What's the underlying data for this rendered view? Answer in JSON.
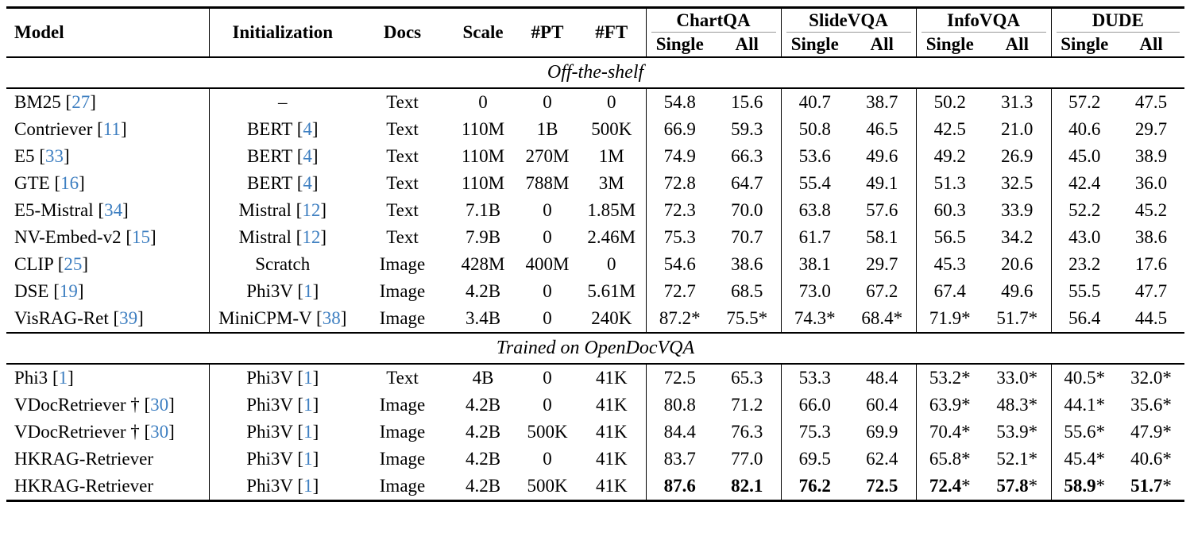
{
  "colors": {
    "citation_link": "#3e7fc1",
    "rule": "#000000",
    "cmidrule": "#989898",
    "text": "#000000"
  },
  "header": {
    "model": "Model",
    "initialization": "Initialization",
    "docs": "Docs",
    "scale": "Scale",
    "pt": "#PT",
    "ft": "#FT",
    "groups": [
      {
        "label": "ChartQA"
      },
      {
        "label": "SlideVQA"
      },
      {
        "label": "InfoVQA"
      },
      {
        "label": "DUDE"
      }
    ],
    "sub": {
      "single": "Single",
      "all": "All"
    }
  },
  "sections": [
    {
      "title": "Off-the-shelf",
      "rows": [
        {
          "model": "BM25",
          "model_cite": "27",
          "init": "–",
          "init_cite": null,
          "docs": "Text",
          "scale": "0",
          "pt": "0",
          "ft": "0",
          "bold": false,
          "vals": [
            "54.8",
            "15.6",
            "40.7",
            "38.7",
            "50.2",
            "31.3",
            "57.2",
            "47.5"
          ]
        },
        {
          "model": "Contriever",
          "model_cite": "11",
          "init": "BERT",
          "init_cite": "4",
          "docs": "Text",
          "scale": "110M",
          "pt": "1B",
          "ft": "500K",
          "bold": false,
          "vals": [
            "66.9",
            "59.3",
            "50.8",
            "46.5",
            "42.5",
            "21.0",
            "40.6",
            "29.7"
          ]
        },
        {
          "model": "E5",
          "model_cite": "33",
          "init": "BERT",
          "init_cite": "4",
          "docs": "Text",
          "scale": "110M",
          "pt": "270M",
          "ft": "1M",
          "bold": false,
          "vals": [
            "74.9",
            "66.3",
            "53.6",
            "49.6",
            "49.2",
            "26.9",
            "45.0",
            "38.9"
          ]
        },
        {
          "model": "GTE",
          "model_cite": "16",
          "init": "BERT",
          "init_cite": "4",
          "docs": "Text",
          "scale": "110M",
          "pt": "788M",
          "ft": "3M",
          "bold": false,
          "vals": [
            "72.8",
            "64.7",
            "55.4",
            "49.1",
            "51.3",
            "32.5",
            "42.4",
            "36.0"
          ]
        },
        {
          "model": "E5-Mistral",
          "model_cite": "34",
          "init": "Mistral",
          "init_cite": "12",
          "docs": "Text",
          "scale": "7.1B",
          "pt": "0",
          "ft": "1.85M",
          "bold": false,
          "vals": [
            "72.3",
            "70.0",
            "63.8",
            "57.6",
            "60.3",
            "33.9",
            "52.2",
            "45.2"
          ]
        },
        {
          "model": "NV-Embed-v2",
          "model_cite": "15",
          "init": "Mistral",
          "init_cite": "12",
          "docs": "Text",
          "scale": "7.9B",
          "pt": "0",
          "ft": "2.46M",
          "bold": false,
          "vals": [
            "75.3",
            "70.7",
            "61.7",
            "58.1",
            "56.5",
            "34.2",
            "43.0",
            "38.6"
          ]
        },
        {
          "model": "CLIP",
          "model_cite": "25",
          "init": "Scratch",
          "init_cite": null,
          "docs": "Image",
          "scale": "428M",
          "pt": "400M",
          "ft": "0",
          "bold": false,
          "vals": [
            "54.6",
            "38.6",
            "38.1",
            "29.7",
            "45.3",
            "20.6",
            "23.2",
            "17.6"
          ]
        },
        {
          "model": "DSE",
          "model_cite": "19",
          "init": "Phi3V",
          "init_cite": "1",
          "docs": "Image",
          "scale": "4.2B",
          "pt": "0",
          "ft": "5.61M",
          "bold": false,
          "vals": [
            "72.7",
            "68.5",
            "73.0",
            "67.2",
            "67.4",
            "49.6",
            "55.5",
            "47.7"
          ]
        },
        {
          "model": "VisRAG-Ret",
          "model_cite": "39",
          "init": "MiniCPM-V",
          "init_cite": "38",
          "docs": "Image",
          "scale": "3.4B",
          "pt": "0",
          "ft": "240K",
          "bold": false,
          "vals": [
            "87.2*",
            "75.5*",
            "74.3*",
            "68.4*",
            "71.9*",
            "51.7*",
            "56.4",
            "44.5"
          ]
        }
      ]
    },
    {
      "title": "Trained on OpenDocVQA",
      "rows": [
        {
          "model": "Phi3",
          "model_cite": "1",
          "init": "Phi3V",
          "init_cite": "1",
          "docs": "Text",
          "scale": "4B",
          "pt": "0",
          "ft": "41K",
          "bold": false,
          "vals": [
            "72.5",
            "65.3",
            "53.3",
            "48.4",
            "53.2*",
            "33.0*",
            "40.5*",
            "32.0*"
          ]
        },
        {
          "model": "VDocRetriever †",
          "model_cite": "30",
          "init": "Phi3V",
          "init_cite": "1",
          "docs": "Image",
          "scale": "4.2B",
          "pt": "0",
          "ft": "41K",
          "bold": false,
          "vals": [
            "80.8",
            "71.2",
            "66.0",
            "60.4",
            "63.9*",
            "48.3*",
            "44.1*",
            "35.6*"
          ]
        },
        {
          "model": "VDocRetriever †",
          "model_cite": "30",
          "init": "Phi3V",
          "init_cite": "1",
          "docs": "Image",
          "scale": "4.2B",
          "pt": "500K",
          "ft": "41K",
          "bold": false,
          "vals": [
            "84.4",
            "76.3",
            "75.3",
            "69.9",
            "70.4*",
            "53.9*",
            "55.6*",
            "47.9*"
          ]
        },
        {
          "model": "HKRAG-Retriever",
          "model_cite": null,
          "init": "Phi3V",
          "init_cite": "1",
          "docs": "Image",
          "scale": "4.2B",
          "pt": "0",
          "ft": "41K",
          "bold": false,
          "vals": [
            "83.7",
            "77.0",
            "69.5",
            "62.4",
            "65.8*",
            "52.1*",
            "45.4*",
            "40.6*"
          ]
        },
        {
          "model": "HKRAG-Retriever",
          "model_cite": null,
          "init": "Phi3V",
          "init_cite": "1",
          "docs": "Image",
          "scale": "4.2B",
          "pt": "500K",
          "ft": "41K",
          "bold": true,
          "vals": [
            "87.6",
            "82.1",
            "76.2",
            "72.5",
            "72.4*",
            "57.8*",
            "58.9*",
            "51.7*"
          ]
        }
      ]
    }
  ]
}
